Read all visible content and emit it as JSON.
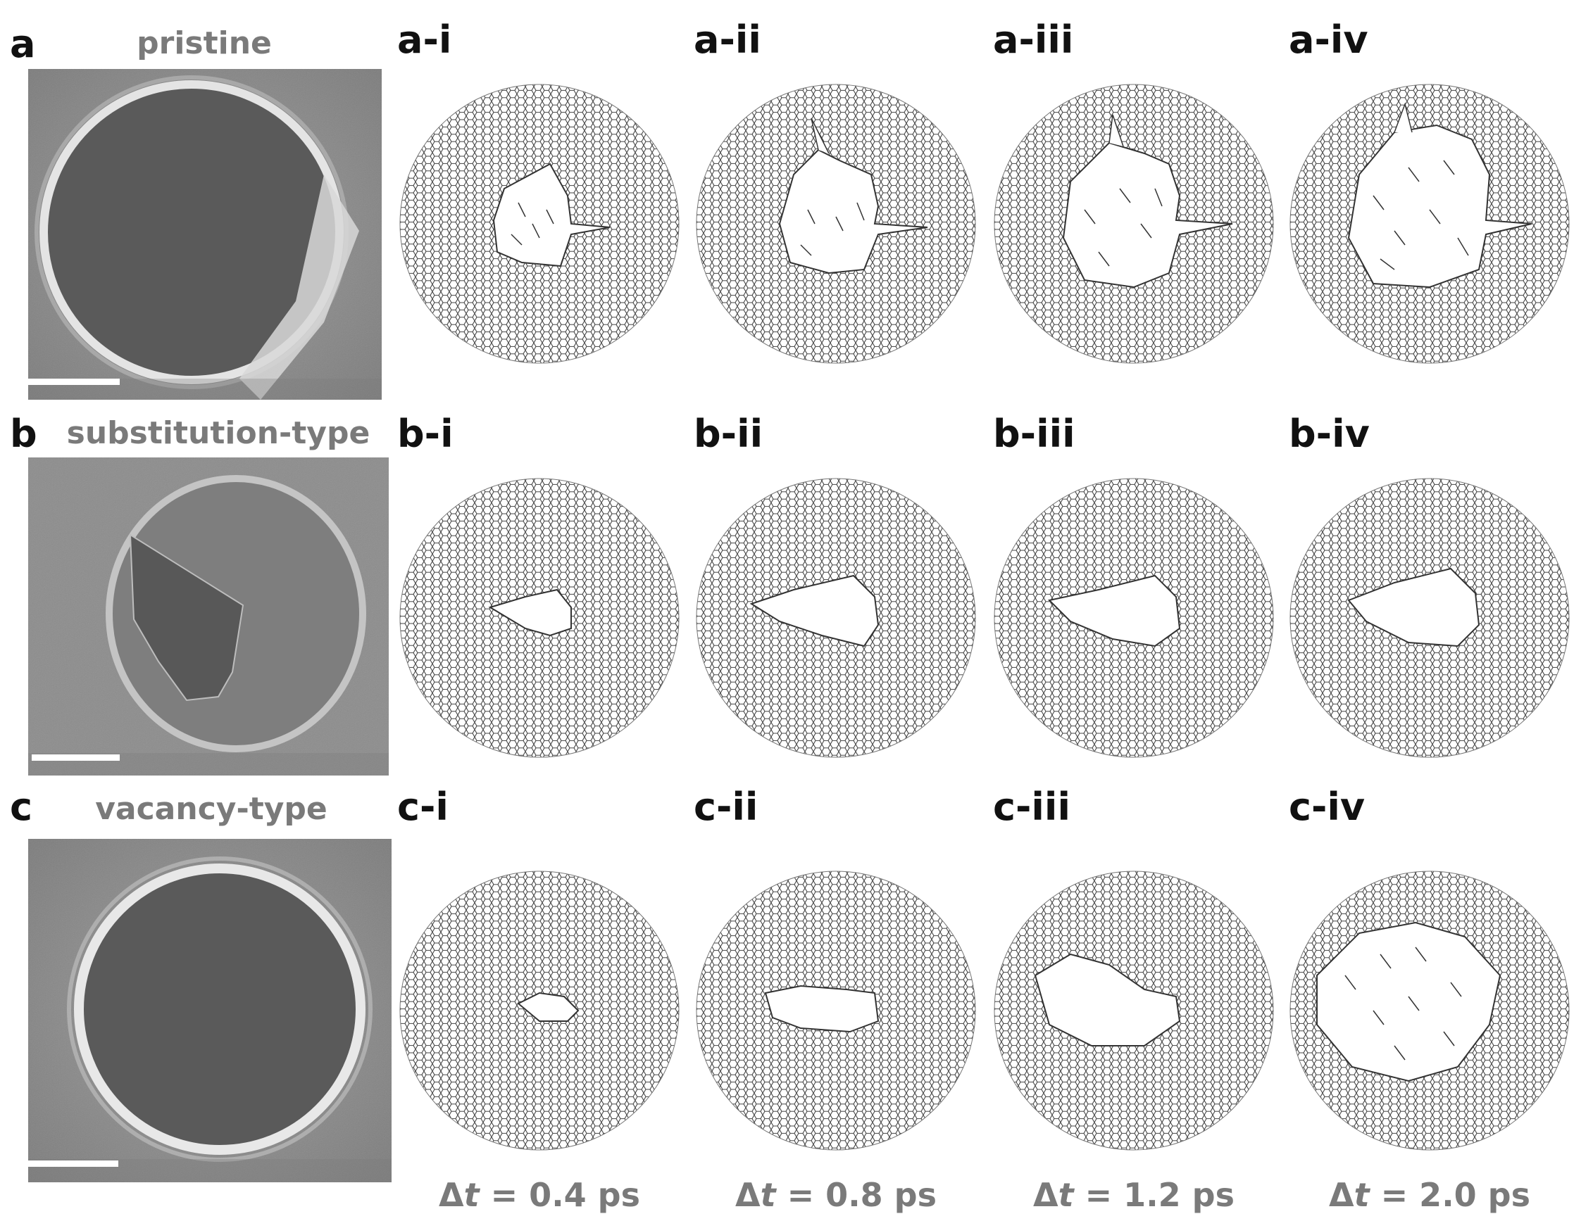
{
  "rows": [
    {
      "letter": "a",
      "sem_title": "pristine",
      "panels": [
        "a-i",
        "a-ii",
        "a-iii",
        "a-iv"
      ]
    },
    {
      "letter": "b",
      "sem_title": "substitution-type",
      "panels": [
        "b-i",
        "b-ii",
        "b-iii",
        "b-iv"
      ]
    },
    {
      "letter": "c",
      "sem_title": "vacancy-type",
      "panels": [
        "c-i",
        "c-ii",
        "c-iii",
        "c-iv"
      ]
    }
  ],
  "time_labels": [
    {
      "prefix": "Δ",
      "var": "t",
      "value": " = 0.4 ps"
    },
    {
      "prefix": "Δ",
      "var": "t",
      "value": " = 0.8 ps"
    },
    {
      "prefix": "Δ",
      "var": "t",
      "value": " = 1.2 ps"
    },
    {
      "prefix": "Δ",
      "var": "t",
      "value": " = 2.0 ps"
    }
  ],
  "colors": {
    "sem_background": "#8a8a8a",
    "sem_hole": "#5c5c5c",
    "sem_rim": "#e8e8e8",
    "lattice": "#3a3a3a",
    "scale_bar": "#ffffff"
  }
}
